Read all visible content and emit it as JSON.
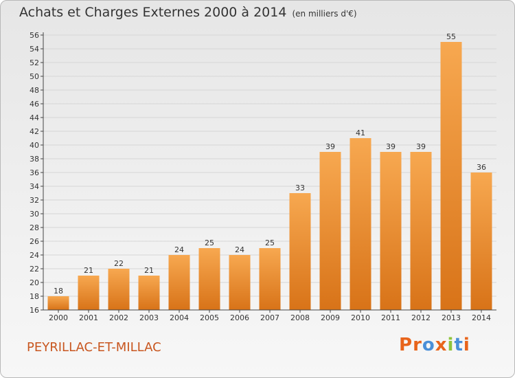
{
  "header": {
    "title": "Achats et Charges Externes 2000 à 2014",
    "subtitle": "(en milliers d'€)"
  },
  "footer": {
    "commune": "PEYRILLAC-ET-MILLAC",
    "logo": "Proxiti",
    "logo_colors": [
      "#e8641b",
      "#e8641b",
      "#4a8fd8",
      "#e8641b",
      "#8fc43c",
      "#4a8fd8",
      "#e8641b"
    ]
  },
  "colors": {
    "bar_light": "#f7a850",
    "bar_dark": "#d87318",
    "grid": "#d6d6d6",
    "axis": "#444444"
  },
  "chart_data": {
    "type": "bar",
    "title": "Achats et Charges Externes 2000 à 2014",
    "subtitle": "(en milliers d'€)",
    "categories": [
      "2000",
      "2001",
      "2002",
      "2003",
      "2004",
      "2005",
      "2006",
      "2007",
      "2008",
      "2009",
      "2010",
      "2011",
      "2012",
      "2013",
      "2014"
    ],
    "values": [
      18,
      21,
      22,
      21,
      24,
      25,
      24,
      25,
      33,
      39,
      41,
      39,
      39,
      55,
      36
    ],
    "ylim": [
      16,
      56
    ],
    "yticks": [
      16,
      18,
      20,
      22,
      24,
      26,
      28,
      30,
      32,
      34,
      36,
      38,
      40,
      42,
      44,
      46,
      48,
      50,
      52,
      54,
      56
    ],
    "grid": true,
    "xlabel": "",
    "ylabel": ""
  }
}
